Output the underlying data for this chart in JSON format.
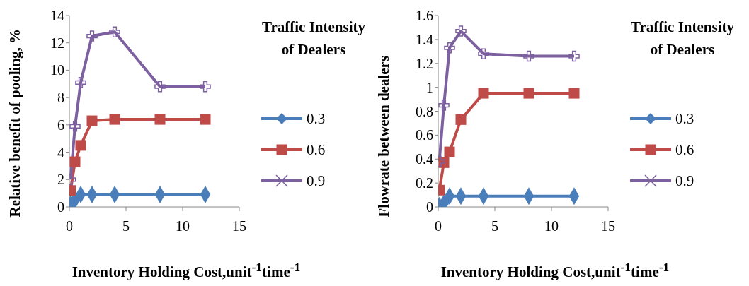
{
  "chart_data": [
    {
      "type": "line",
      "xlabel": "Inventory Holding Cost,unit$^{-1}$time$^{-1}$",
      "ylabel": "Relative benefit of pooling, %",
      "legend_title": "Traffic Intensity of Dealers",
      "legend": "right",
      "grid": false,
      "x": [
        0.1,
        0.5,
        1,
        2,
        4,
        8,
        12
      ],
      "xlim": [
        0,
        15
      ],
      "xticks": [
        0,
        5,
        10,
        15
      ],
      "ylim": [
        0,
        14
      ],
      "yticks": [
        0,
        2,
        4,
        6,
        8,
        10,
        12,
        14
      ],
      "series": [
        {
          "name": "0.3",
          "color": "#4a7ebb",
          "marker": "diamond",
          "values": [
            0.2,
            0.5,
            0.9,
            0.9,
            0.9,
            0.9,
            0.9
          ]
        },
        {
          "name": "0.6",
          "color": "#be4b48",
          "marker": "square",
          "values": [
            1.2,
            3.3,
            4.5,
            6.3,
            6.4,
            6.4,
            6.4
          ]
        },
        {
          "name": "0.9",
          "color": "#7d60a0",
          "marker": "cross",
          "values": [
            2.0,
            5.9,
            9.1,
            12.5,
            12.8,
            8.8,
            8.8
          ]
        }
      ]
    },
    {
      "type": "line",
      "xlabel": "Inventory Holding Cost,unit$^{-1}$time$^{-1}$",
      "ylabel": "Flowrate between dealers",
      "legend_title": "Traffic Intensity of Dealers",
      "legend": "right",
      "grid": false,
      "x": [
        0.1,
        0.5,
        1,
        2,
        4,
        8,
        12
      ],
      "xlim": [
        0,
        15
      ],
      "xticks": [
        0,
        5,
        10,
        15
      ],
      "ylim": [
        0,
        1.6
      ],
      "yticks": [
        0,
        0.2,
        0.4,
        0.6,
        0.8,
        1,
        1.2,
        1.4,
        1.6
      ],
      "series": [
        {
          "name": "0.3",
          "color": "#4a7ebb",
          "marker": "diamond",
          "values": [
            0.01,
            0.03,
            0.09,
            0.09,
            0.09,
            0.09,
            0.09
          ]
        },
        {
          "name": "0.6",
          "color": "#be4b48",
          "marker": "square",
          "values": [
            0.14,
            0.37,
            0.46,
            0.73,
            0.95,
            0.95,
            0.95
          ]
        },
        {
          "name": "0.9",
          "color": "#7d60a0",
          "marker": "cross",
          "values": [
            0.38,
            0.85,
            1.33,
            1.47,
            1.28,
            1.26,
            1.26
          ]
        }
      ]
    }
  ]
}
